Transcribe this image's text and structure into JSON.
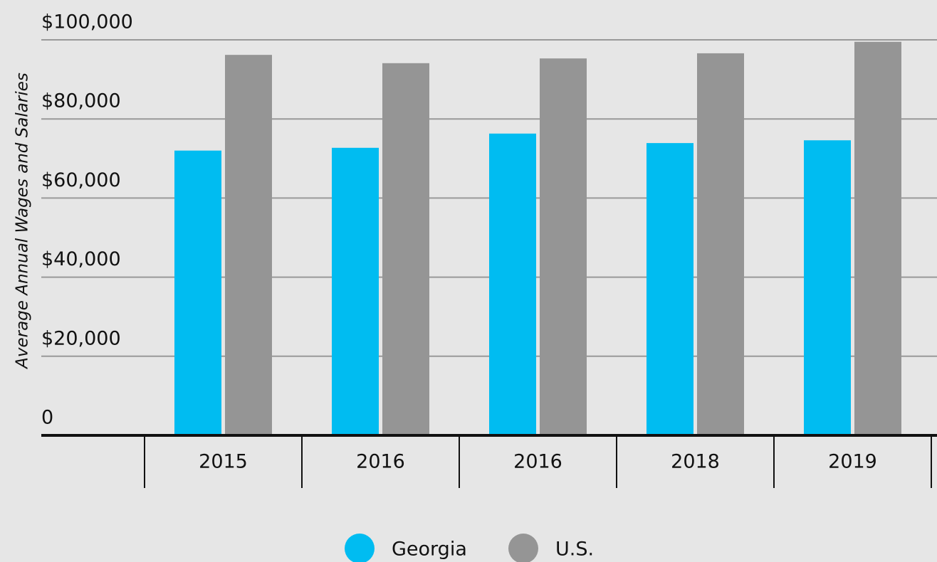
{
  "chart_data": {
    "type": "bar",
    "y_axis_label": "Average Annual Wages and Salaries",
    "categories": [
      "2015",
      "2016",
      "2016",
      "2018",
      "2019"
    ],
    "series": [
      {
        "name": "Georgia",
        "color": "#00bcf1",
        "values": [
          72000,
          72700,
          76300,
          73900,
          74600
        ]
      },
      {
        "name": "U.S.",
        "color": "#959595",
        "values": [
          96200,
          94100,
          95300,
          96600,
          99500
        ]
      }
    ],
    "ylim": [
      0,
      100000
    ],
    "yticks": [
      0,
      {
        "value": 20000,
        "label": "$20,000"
      },
      {
        "value": 40000,
        "label": "$40,000"
      },
      {
        "value": 60000,
        "label": "$60,000"
      },
      {
        "value": 80000,
        "label": "$80,000"
      },
      {
        "value": 100000,
        "label": "$100,000"
      }
    ],
    "grid": true,
    "legend": "bottom"
  }
}
